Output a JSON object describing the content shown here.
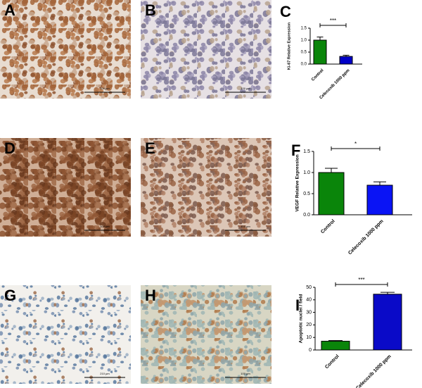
{
  "micrographs": [
    {
      "label": "A",
      "scale_bar": "100 µm"
    },
    {
      "label": "B",
      "scale_bar": "100 µm"
    },
    {
      "label": "D",
      "scale_bar": "100 µm"
    },
    {
      "label": "E",
      "scale_bar": "100 µm"
    },
    {
      "label": "G",
      "scale_bar": "210 µm"
    },
    {
      "label": "H",
      "scale_bar": "100 µm"
    }
  ],
  "chart_data": [
    {
      "type": "bar",
      "panel_label": "C",
      "ylabel": "Ki-67 Relative Expression",
      "categories": [
        "Control",
        "Celecoxib 1000 ppm"
      ],
      "values": [
        1.0,
        0.32
      ],
      "errors": [
        0.13,
        0.05
      ],
      "colors": [
        "#0a850a",
        "#0000c8"
      ],
      "ylim": [
        0,
        1.5
      ],
      "yticks": [
        {
          "value": 0,
          "label": "0.0"
        },
        {
          "value": 0.5,
          "label": "0.5"
        },
        {
          "value": 1,
          "label": "1.0"
        },
        {
          "value": 1.5,
          "label": "1.5"
        }
      ],
      "annotation": "***"
    },
    {
      "type": "bar",
      "panel_label": "F",
      "ylabel": "VEGF Relative Expression",
      "categories": [
        "Control",
        "Celecoxib 1000 ppm"
      ],
      "values": [
        1.0,
        0.7
      ],
      "errors": [
        0.1,
        0.08
      ],
      "colors": [
        "#0a850a",
        "#0a14f5"
      ],
      "ylim": [
        0,
        1.5
      ],
      "yticks": [
        {
          "value": 0,
          "label": "0.0"
        },
        {
          "value": 0.5,
          "label": "0.5"
        },
        {
          "value": 1,
          "label": "1.0"
        },
        {
          "value": 1.5,
          "label": "1.5"
        }
      ],
      "annotation": "*"
    },
    {
      "type": "bar",
      "panel_label": "I",
      "ylabel": "Apoptotic nuclei / field",
      "categories": [
        "Control",
        "Celecoxib 1000 ppm"
      ],
      "values": [
        7,
        44.5
      ],
      "errors": [
        0.5,
        1.5
      ],
      "colors": [
        "#0a850a",
        "#0a0ac8"
      ],
      "ylim": [
        0,
        50
      ],
      "yticks": [
        0,
        10,
        20,
        30,
        40,
        50
      ],
      "annotation": "***"
    }
  ]
}
